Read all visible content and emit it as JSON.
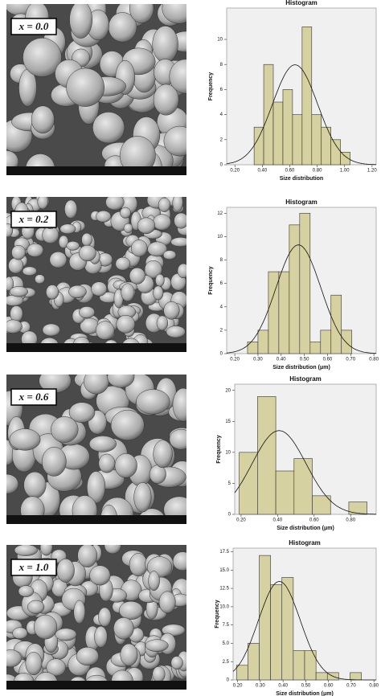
{
  "panels": [
    {
      "label": "x = 0.0"
    },
    {
      "label": "x = 0.2"
    },
    {
      "label": "x = 0.6"
    },
    {
      "label": "x = 1.0"
    }
  ],
  "chart_data": [
    {
      "type": "histogram",
      "title": "Histogram",
      "x_label": "Size distribution",
      "y_label": "Frequency",
      "bins": [
        0.34,
        0.41,
        0.48,
        0.55,
        0.62,
        0.69,
        0.76,
        0.83,
        0.9,
        0.97,
        1.04
      ],
      "values": [
        3,
        8,
        5,
        6,
        4,
        11,
        4,
        3,
        2,
        1
      ],
      "color": "#d6d1a0",
      "normal_curve": true,
      "xlim": [
        0.14,
        1.23
      ],
      "xticks": [
        {
          "value": 0.2,
          "label": "0.20"
        },
        {
          "value": 0.4,
          "label": "0.40"
        },
        {
          "value": 0.6,
          "label": "0.60"
        },
        {
          "value": 0.8,
          "label": "0.80"
        },
        {
          "value": 1.0,
          "label": "1.00"
        },
        {
          "value": 1.2,
          "label": "1.20"
        }
      ],
      "ylim": [
        0,
        12.5
      ],
      "yticks": [
        0,
        2,
        4,
        6,
        8,
        10
      ]
    },
    {
      "type": "histogram",
      "title": "Histogram",
      "x_label": "Size distribution (μm)",
      "y_label": "Frequency",
      "bins": [
        0.255,
        0.3,
        0.345,
        0.39,
        0.435,
        0.48,
        0.525,
        0.57,
        0.615,
        0.66,
        0.705
      ],
      "values": [
        1,
        2,
        7,
        7,
        11,
        12,
        1,
        2,
        5,
        2
      ],
      "color": "#d6d1a0",
      "normal_curve": true,
      "xlim": [
        0.165,
        0.81
      ],
      "xticks": [
        {
          "value": 0.2,
          "label": "0.20"
        },
        {
          "value": 0.3,
          "label": "0.30"
        },
        {
          "value": 0.4,
          "label": "0.40"
        },
        {
          "value": 0.5,
          "label": "0.50"
        },
        {
          "value": 0.6,
          "label": "0.60"
        },
        {
          "value": 0.7,
          "label": "0.70"
        },
        {
          "value": 0.8,
          "label": "0.80"
        }
      ],
      "ylim": [
        0,
        12.5
      ],
      "yticks": [
        0,
        2,
        4,
        6,
        8,
        10,
        12
      ]
    },
    {
      "type": "histogram",
      "title": "Histogram",
      "x_label": "Size distribution (μm)",
      "y_label": "Frequency",
      "bins": [
        0.19,
        0.29,
        0.39,
        0.49,
        0.59,
        0.69,
        0.79,
        0.89
      ],
      "values": [
        10,
        19,
        7,
        9,
        3,
        0,
        2
      ],
      "color": "#d6d1a0",
      "normal_curve": true,
      "xlim": [
        0.165,
        0.94
      ],
      "xticks": [
        {
          "value": 0.2,
          "label": "0.20"
        },
        {
          "value": 0.4,
          "label": "0.40"
        },
        {
          "value": 0.6,
          "label": "0.60"
        },
        {
          "value": 0.8,
          "label": "0.80"
        }
      ],
      "ylim": [
        0,
        21
      ],
      "yticks": [
        0,
        5,
        10,
        15,
        20
      ]
    },
    {
      "type": "histogram",
      "title": "Histogram",
      "x_label": "Size distribution (μm)",
      "y_label": "Frequency",
      "bins": [
        0.195,
        0.245,
        0.295,
        0.345,
        0.395,
        0.445,
        0.495,
        0.545,
        0.595,
        0.645,
        0.695,
        0.745
      ],
      "values": [
        2,
        5,
        17,
        13,
        14,
        4,
        4,
        1,
        1,
        0,
        1
      ],
      "color": "#d6d1a0",
      "normal_curve": true,
      "xlim": [
        0.18,
        0.81
      ],
      "xticks": [
        {
          "value": 0.2,
          "label": "0.20"
        },
        {
          "value": 0.3,
          "label": "0.30"
        },
        {
          "value": 0.4,
          "label": "0.40"
        },
        {
          "value": 0.5,
          "label": "0.50"
        },
        {
          "value": 0.6,
          "label": "0.60"
        },
        {
          "value": 0.7,
          "label": "0.70"
        },
        {
          "value": 0.8,
          "label": "0.80"
        }
      ],
      "ylim": [
        0,
        18
      ],
      "yticks": [
        0,
        2.5,
        {
          "value": 5,
          "label": "5.0"
        },
        7.5,
        {
          "value": 10,
          "label": "10.0"
        },
        12.5,
        {
          "value": 15,
          "label": "15.0"
        },
        17.5
      ]
    }
  ]
}
